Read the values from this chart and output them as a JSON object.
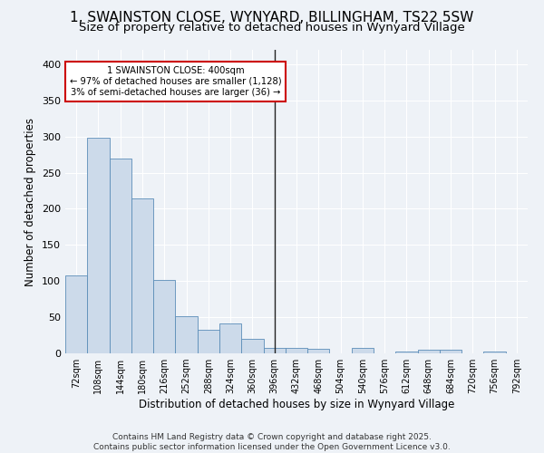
{
  "title_line1": "1, SWAINSTON CLOSE, WYNYARD, BILLINGHAM, TS22 5SW",
  "title_line2": "Size of property relative to detached houses in Wynyard Village",
  "xlabel": "Distribution of detached houses by size in Wynyard Village",
  "ylabel": "Number of detached properties",
  "categories": [
    "72sqm",
    "108sqm",
    "144sqm",
    "180sqm",
    "216sqm",
    "252sqm",
    "288sqm",
    "324sqm",
    "360sqm",
    "396sqm",
    "432sqm",
    "468sqm",
    "504sqm",
    "540sqm",
    "576sqm",
    "612sqm",
    "648sqm",
    "684sqm",
    "720sqm",
    "756sqm",
    "792sqm"
  ],
  "values": [
    108,
    299,
    270,
    214,
    101,
    51,
    33,
    41,
    20,
    8,
    7,
    6,
    0,
    8,
    0,
    3,
    5,
    5,
    0,
    3,
    0
  ],
  "bar_color": "#ccdaea",
  "bar_edge_color": "#5b8db8",
  "vline_color": "#222222",
  "annotation_text": "1 SWAINSTON CLOSE: 400sqm\n← 97% of detached houses are smaller (1,128)\n3% of semi-detached houses are larger (36) →",
  "annotation_box_facecolor": "#ffffff",
  "annotation_box_edgecolor": "#cc0000",
  "ylim": [
    0,
    420
  ],
  "yticks": [
    0,
    50,
    100,
    150,
    200,
    250,
    300,
    350,
    400
  ],
  "background_color": "#eef2f7",
  "grid_color": "#ffffff",
  "footer_text": "Contains HM Land Registry data © Crown copyright and database right 2025.\nContains public sector information licensed under the Open Government Licence v3.0."
}
